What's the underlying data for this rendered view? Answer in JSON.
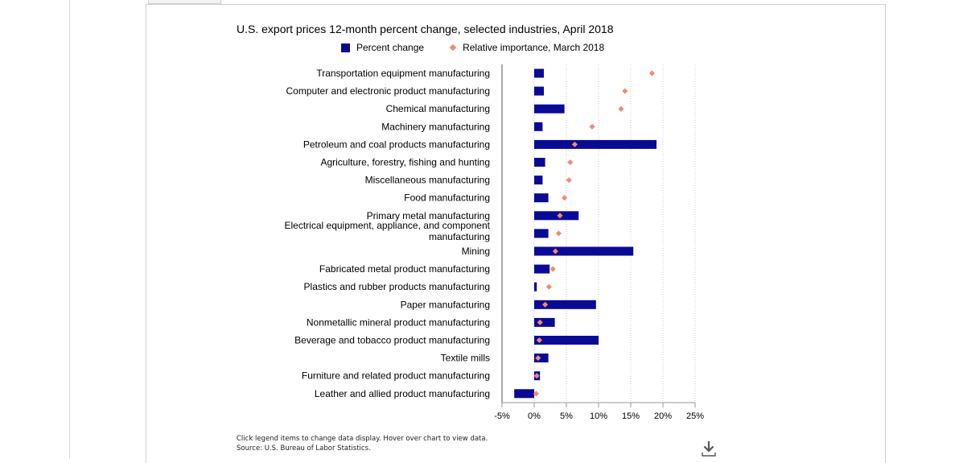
{
  "chart_data": {
    "type": "bar",
    "orientation": "horizontal",
    "title": "U.S. export prices 12-month percent change, selected industries, April 2018",
    "categories": [
      "Transportation equipment manufacturing",
      "Computer and electronic product manufacturing",
      "Chemical manufacturing",
      "Machinery manufacturing",
      "Petroleum and coal products manufacturing",
      "Agriculture, forestry, fishing and hunting",
      "Miscellaneous manufacturing",
      "Food manufacturing",
      "Primary metal manufacturing",
      "Electrical equipment, appliance, and component manufacturing",
      "Mining",
      "Fabricated metal product manufacturing",
      "Plastics and rubber products manufacturing",
      "Paper manufacturing",
      "Nonmetallic mineral product manufacturing",
      "Beverage and tobacco product manufacturing",
      "Textile mills",
      "Furniture and related product manufacturing",
      "Leather and allied product manufacturing"
    ],
    "series": [
      {
        "name": "Percent change",
        "mark": "bar",
        "color": "#0a0a96",
        "values": [
          1.5,
          1.5,
          4.7,
          1.3,
          19.0,
          1.7,
          1.3,
          2.2,
          6.9,
          2.2,
          15.4,
          2.4,
          0.4,
          9.6,
          3.2,
          10.0,
          2.2,
          0.9,
          -3.1
        ]
      },
      {
        "name": "Relative importance, March 2018",
        "mark": "diamond",
        "color": "#f4896c",
        "values": [
          18.3,
          14.1,
          13.5,
          9.0,
          6.3,
          5.6,
          5.4,
          4.7,
          4.0,
          3.8,
          3.3,
          2.9,
          2.3,
          1.7,
          0.9,
          0.8,
          0.6,
          0.4,
          0.3
        ]
      }
    ],
    "xticks": [
      "-5%",
      "0%",
      "5%",
      "10%",
      "15%",
      "20%",
      "25%"
    ],
    "xlim": [
      -5,
      25
    ],
    "grid": "vertical dotted",
    "legend_position": "top"
  },
  "footer": {
    "note": "Click legend items to change data display. Hover over chart to view data.",
    "source": "Source: U.S. Bureau of Labor Statistics."
  }
}
